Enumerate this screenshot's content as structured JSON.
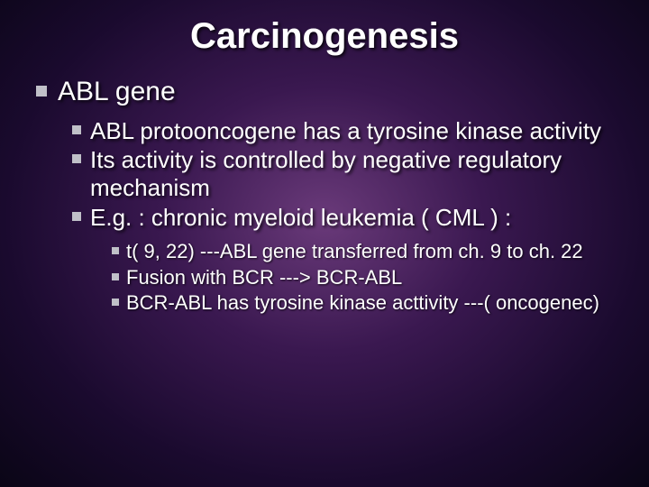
{
  "title": "Carcinogenesis",
  "level1": {
    "text": "ABL gene"
  },
  "level2": [
    {
      "text": "ABL protooncogene has a tyrosine kinase activity"
    },
    {
      "text": "Its activity is controlled by negative regulatory mechanism"
    },
    {
      "text": "E.g. :  chronic myeloid leukemia ( CML ) :"
    }
  ],
  "level3": [
    {
      "text": "t( 9, 22) ---ABL gene transferred from ch. 9 to ch. 22"
    },
    {
      "text": "Fusion with BCR --->  BCR-ABL"
    },
    {
      "text": "BCR-ABL has tyrosine kinase acttivity ---( oncogenec)"
    }
  ],
  "colors": {
    "text": "#ffffff",
    "bullet": "#c0c0c8",
    "bg_center": "#6a3a7a",
    "bg_mid": "#3a1850",
    "bg_outer": "#0a0516"
  },
  "fonts": {
    "title_size": 40,
    "l1_size": 30,
    "l2_size": 26,
    "l3_size": 22,
    "family": "Arial"
  }
}
